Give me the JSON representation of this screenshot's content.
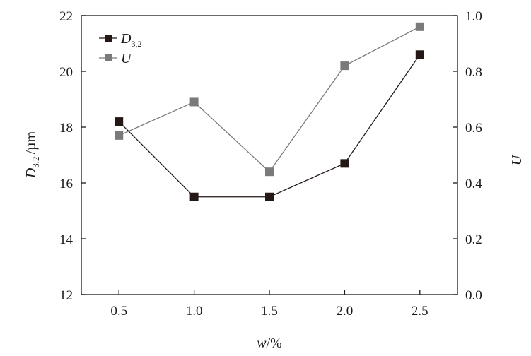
{
  "chart_data": {
    "type": "line",
    "x": [
      0.5,
      1.0,
      1.5,
      2.0,
      2.5
    ],
    "x_tick_labels": [
      "0.5",
      "1.0",
      "1.5",
      "2.0",
      "2.5"
    ],
    "xlim": [
      0.25,
      2.75
    ],
    "xlabel": {
      "var": "w",
      "unit": "/%"
    },
    "left_axis": {
      "ylim": [
        12,
        22
      ],
      "ticks": [
        12,
        14,
        16,
        18,
        20,
        22
      ],
      "tick_labels": [
        "12",
        "14",
        "16",
        "18",
        "20",
        "22"
      ],
      "label": {
        "var": "D",
        "sub": "3,2",
        "unit": "/µm"
      }
    },
    "right_axis": {
      "ylim": [
        0.0,
        1.0
      ],
      "ticks": [
        0.0,
        0.2,
        0.4,
        0.6,
        0.8,
        1.0
      ],
      "tick_labels": [
        "0.0",
        "0.2",
        "0.4",
        "0.6",
        "0.8",
        "1.0"
      ],
      "label": "U"
    },
    "series": [
      {
        "name": "D",
        "name_sub": "3,2",
        "axis": "left",
        "color": "#231815",
        "marker": "square",
        "values": [
          18.2,
          15.5,
          15.5,
          16.7,
          20.6
        ]
      },
      {
        "name": "U",
        "axis": "right",
        "color": "#7a7a7a",
        "marker": "square",
        "values": [
          0.57,
          0.69,
          0.44,
          0.82,
          0.96
        ]
      }
    ],
    "legend_position": "top-left",
    "grid": false
  }
}
